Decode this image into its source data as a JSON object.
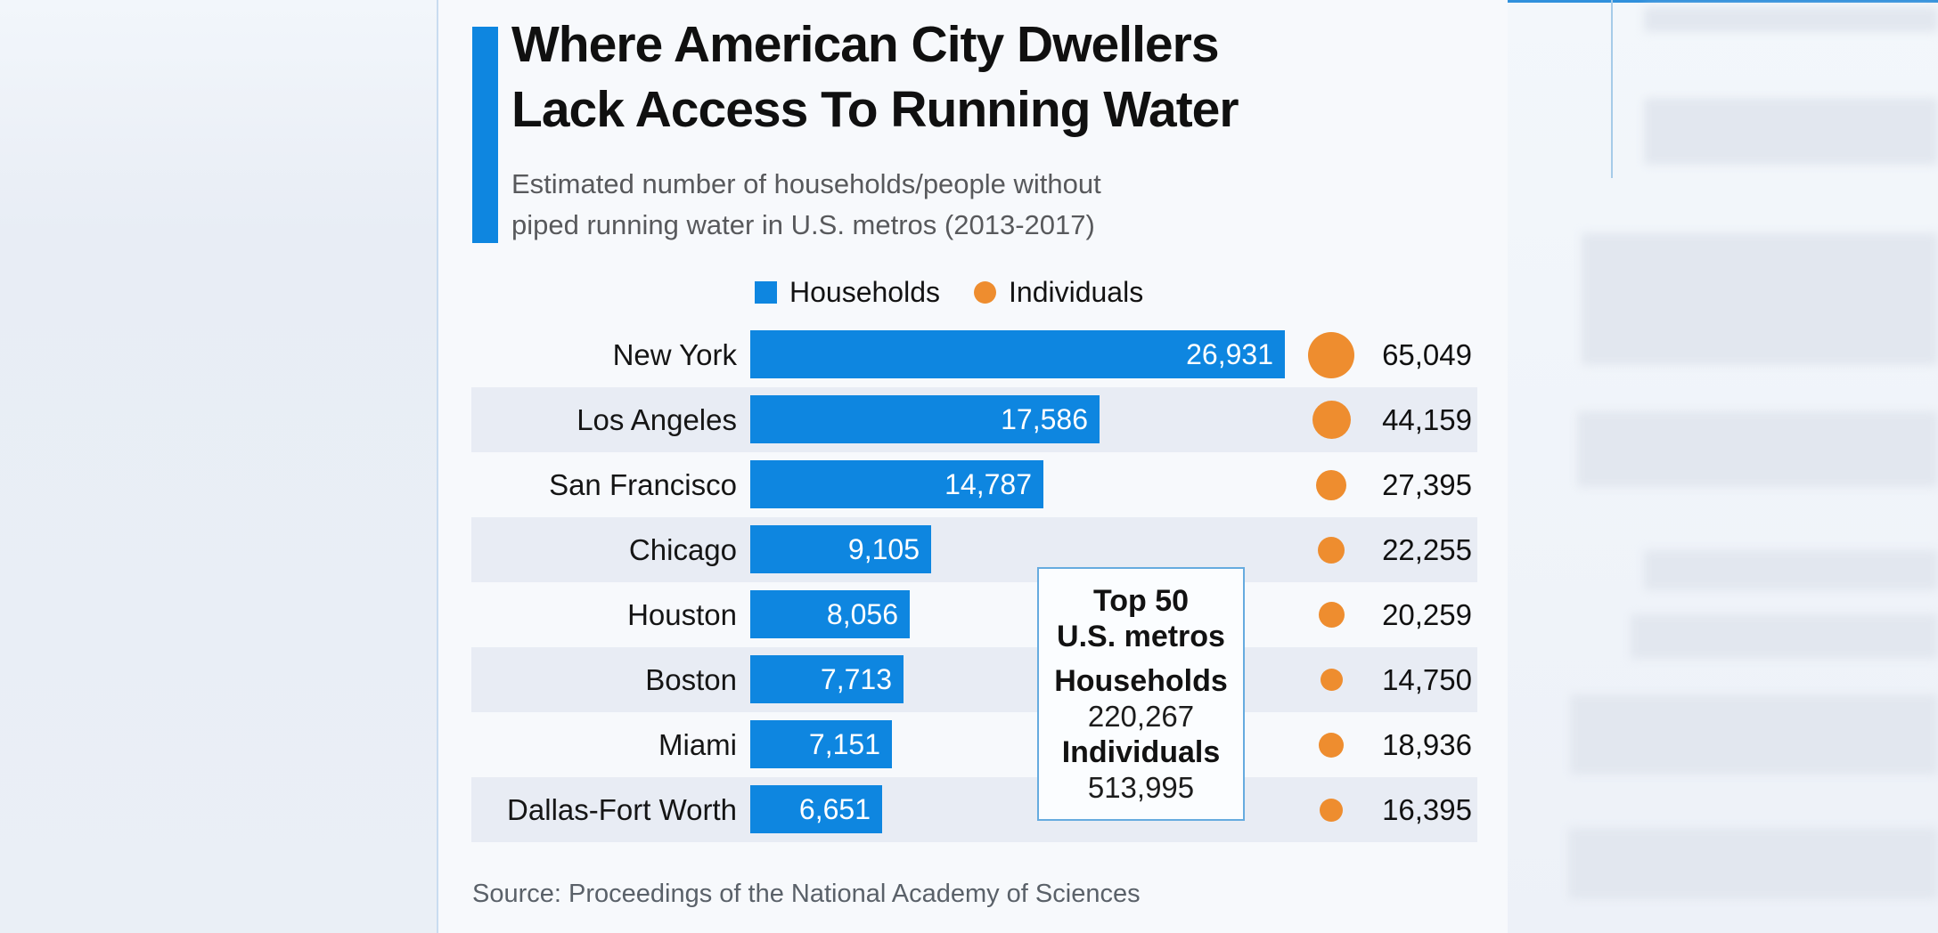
{
  "title": {
    "line1": "Where American City Dwellers",
    "line2": "Lack Access To Running Water"
  },
  "subtitle": {
    "line1": "Estimated number of households/people without",
    "line2": "piped running water in U.S. metros (2013-2017)"
  },
  "legend": {
    "households_label": "Households",
    "individuals_label": "Individuals"
  },
  "chart_data": {
    "type": "bar",
    "orientation": "horizontal",
    "categories": [
      "New York",
      "Los Angeles",
      "San Francisco",
      "Chicago",
      "Houston",
      "Boston",
      "Miami",
      "Dallas-Fort Worth"
    ],
    "series": [
      {
        "name": "Households",
        "values": [
          26931,
          17586,
          14787,
          9105,
          8056,
          7713,
          7151,
          6651
        ]
      },
      {
        "name": "Individuals",
        "values": [
          65049,
          44159,
          27395,
          22255,
          20259,
          14750,
          18936,
          16395
        ]
      }
    ],
    "title": "Where American City Dwellers Lack Access To Running Water",
    "subtitle": "Estimated number of households/people without piped running water in U.S. metros (2013-2017)",
    "value_labels": "households shown as blue bars with white labels, individuals shown as orange circles sized by value with labels right of circles",
    "xlim": [
      0,
      26931
    ],
    "grid": false,
    "legend_position": "top"
  },
  "annotation": {
    "title_line1": "Top 50",
    "title_line2": "U.S. metros",
    "households_label": "Households",
    "households_value": "220,267",
    "individuals_label": "Individuals",
    "individuals_value": "513,995"
  },
  "source": "Source: Proceedings of the National Academy of Sciences",
  "colors": {
    "bar_blue": "#0e86e0",
    "circle_orange": "#ee8d2f",
    "row_stripe": "#e8ecf4",
    "card_background": "#f7f9fc",
    "title_text": "#101010",
    "subtitle_text": "#58595c",
    "source_text": "#5a6169",
    "annotation_border": "#66abdf"
  }
}
